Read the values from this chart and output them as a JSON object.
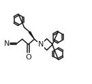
{
  "bg_color": "#ffffff",
  "line_color": "#1a1a1a",
  "lw": 1.1,
  "fs": 7.5,
  "figsize": [
    1.35,
    1.23
  ],
  "dpi": 100,
  "xlim": [
    0,
    1
  ],
  "ylim": [
    0,
    1
  ]
}
